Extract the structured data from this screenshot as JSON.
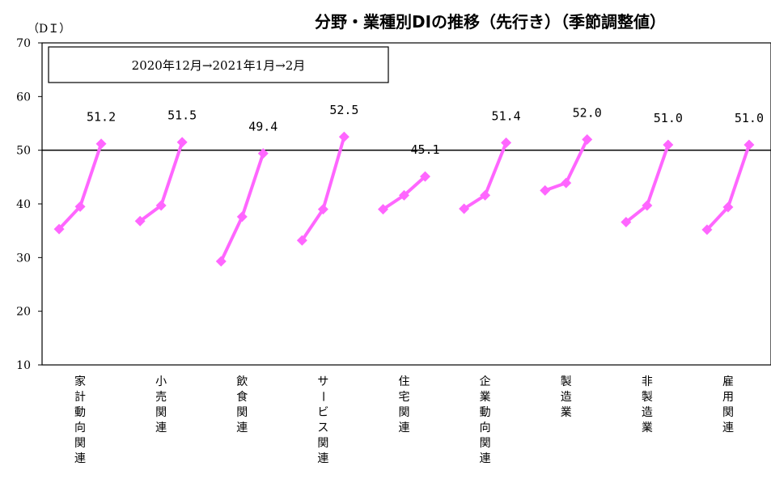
{
  "chart_data": {
    "type": "line",
    "title": "分野・業種別DIの推移（先行き）（季節調整値）",
    "ylabel": "（DＩ）",
    "ylim": [
      10,
      70
    ],
    "yticks": [
      10,
      20,
      30,
      40,
      50,
      60,
      70
    ],
    "reference_line": 50,
    "legend": "2020年12月→2021年1月→2月",
    "periods": [
      "2020年12月",
      "2021年1月",
      "2月"
    ],
    "series_color": "#ff66ff",
    "categories": [
      "家計動向関連",
      "小売関連",
      "飲食関連",
      "サービス関連",
      "住宅関連",
      "企業動向関連",
      "製造業",
      "非製造業",
      "雇用関連"
    ],
    "values": [
      [
        35.3,
        39.5,
        51.2
      ],
      [
        36.8,
        39.7,
        51.5
      ],
      [
        29.3,
        37.6,
        49.4
      ],
      [
        33.2,
        39.0,
        52.5
      ],
      [
        39.0,
        41.6,
        45.1
      ],
      [
        39.1,
        41.6,
        51.4
      ],
      [
        42.5,
        43.9,
        52.0
      ],
      [
        36.6,
        39.7,
        51.0
      ],
      [
        35.2,
        39.4,
        51.0
      ]
    ],
    "data_labels": [
      "51.2",
      "51.5",
      "49.4",
      "52.5",
      "45.1",
      "51.4",
      "52.0",
      "51.0",
      "51.0"
    ]
  }
}
